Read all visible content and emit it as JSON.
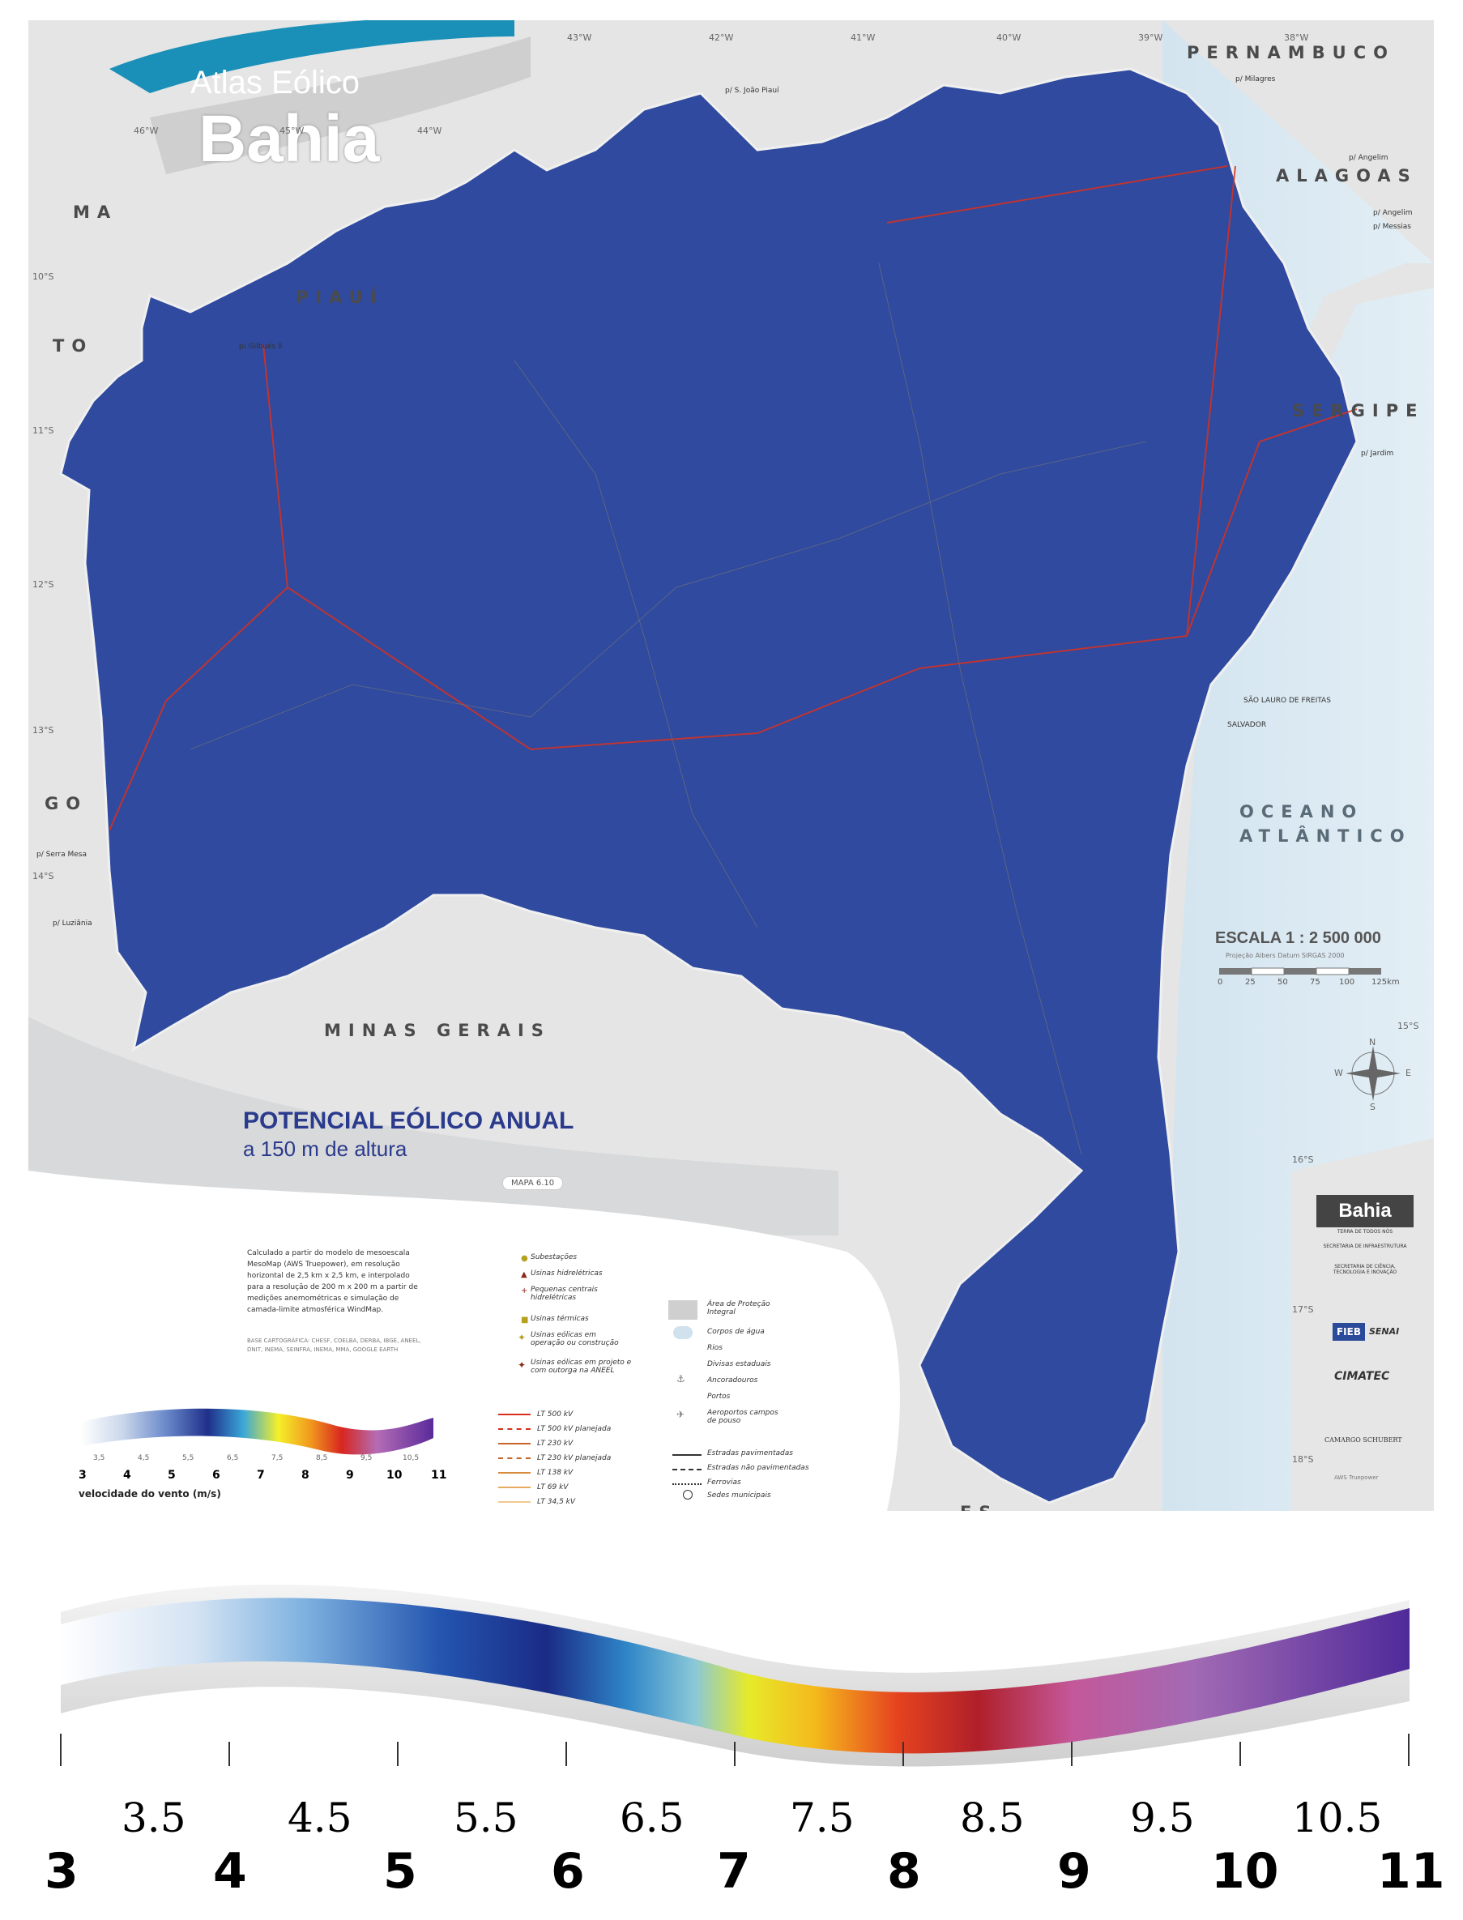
{
  "header": {
    "atlas_label": "Atlas Eólico",
    "region_title": "Bahia"
  },
  "map": {
    "title": "POTENCIAL EÓLICO ANUAL",
    "subtitle": "a 150 m de altura",
    "map_code": "MAPA 6.10",
    "ocean_label_1": "OCEANO",
    "ocean_label_2": "ATLÂNTICO",
    "neighbor_states": [
      "PERNAMBUCO",
      "ALAGOAS",
      "SERGIPE",
      "PIAUÍ",
      "MA",
      "TO",
      "GO",
      "MINAS GERAIS",
      "ES"
    ],
    "city_labels": [
      "SALVADOR",
      "SÃO LAURO DE FREITAS"
    ],
    "latitudes": [
      "10°S",
      "11°S",
      "12°S",
      "13°S",
      "14°S",
      "15°S",
      "16°S",
      "17°S",
      "18°S"
    ],
    "longitudes": [
      "46°W",
      "45°W",
      "44°W",
      "43°W",
      "42°W",
      "41°W",
      "40°W",
      "39°W",
      "38°W"
    ],
    "border_links": [
      "p/ S. João Piauí",
      "p/ Milagres",
      "p/ Angelim",
      "p/ Angelim",
      "p/ Messias",
      "p/ Gilbués II",
      "p/ Jardim",
      "p/ Serra Mesa",
      "p/ Luziânia"
    ],
    "compass": {
      "n": "N",
      "s": "S",
      "e": "E",
      "w": "W"
    }
  },
  "scale": {
    "label": "ESCALA 1 : 2 500 000",
    "note": "Projeção Albers Datum SIRGAS 2000",
    "ticks": [
      "0",
      "25",
      "50",
      "75",
      "100",
      "125km"
    ]
  },
  "description": {
    "text": "Calculado a partir do modelo de mesoescala MesoMap (AWS Truepower), em resolução horizontal de 2,5 km x 2,5 km, e interpolado para a resolução de 200 m x 200 m a partir de medições anemométricas e simulação de camada-limite atmosférica WindMap.",
    "sources": "BASE CARTOGRÁFICA: CHESF, COELBA, DERBA, IBGE, ANEEL, DNIT, INEMA, SEINFRA, INEMA, MMA, GOOGLE EARTH"
  },
  "legend": {
    "col1": [
      "Subestações",
      "Usinas hidrelétricas",
      "Pequenas centrais hidrelétricas",
      "Usinas térmicas",
      "Usinas eólicas em operação ou construção",
      "Usinas eólicas em projeto e com outorga na ANEEL"
    ],
    "lines": [
      {
        "label": "LT 500 kV",
        "color": "#d9301e"
      },
      {
        "label": "LT 500 kV planejada",
        "color": "#d9301e"
      },
      {
        "label": "LT 230 kV",
        "color": "#c8642a"
      },
      {
        "label": "LT 230 kV planejada",
        "color": "#c8642a"
      },
      {
        "label": "LT 138 kV",
        "color": "#d98a3a"
      },
      {
        "label": "LT 69 kV",
        "color": "#e8aa60"
      },
      {
        "label": "LT 34,5 kV",
        "color": "#f0c890"
      }
    ],
    "col3": [
      "Área de Proteção Integral",
      "Corpos de água",
      "Rios",
      "Divisas estaduais",
      "Ancoradouros",
      "Portos",
      "Aeroportos campos de pouso"
    ],
    "roads": [
      "Estradas pavimentadas",
      "Estradas não pavimentadas",
      "Ferrovias",
      "Sedes municipais"
    ]
  },
  "colorbar": {
    "major_ticks": [
      "3",
      "4",
      "5",
      "6",
      "7",
      "8",
      "9",
      "10",
      "11"
    ],
    "minor_ticks": [
      "3,5",
      "4,5",
      "5,5",
      "6,5",
      "7,5",
      "8,5",
      "9,5",
      "10,5"
    ],
    "label": "velocidade do vento (m/s)",
    "colors": [
      "#ffffff",
      "#c9d6ea",
      "#7b9bd0",
      "#2a3e9a",
      "#1f6fc8",
      "#3aa7d8",
      "#f5ef2a",
      "#f19a1e",
      "#e2321f",
      "#b01f3a",
      "#b46cb6",
      "#5a2a9a"
    ]
  },
  "enlarged_colorbar": {
    "major_ticks": [
      "3",
      "4",
      "5",
      "6",
      "7",
      "8",
      "9",
      "10",
      "11"
    ],
    "minor_ticks": [
      "3.5",
      "4.5",
      "5.5",
      "6.5",
      "7.5",
      "8.5",
      "9.5",
      "10.5"
    ]
  },
  "logos": {
    "bahia": "Bahia",
    "bahia_tag": "TERRA DE TODOS NÓS",
    "secretaria_1": "SECRETARIA DE INFRAESTRUTURA",
    "secretaria_2": "SECRETARIA DE CIÊNCIA, TECNOLOGIA E INOVAÇÃO",
    "fieb": "FIEB",
    "senai": "SENAI",
    "cimatec": "CIMATEC",
    "camargo": "CAMARGO SCHUBERT",
    "aws": "AWS Truepower"
  }
}
